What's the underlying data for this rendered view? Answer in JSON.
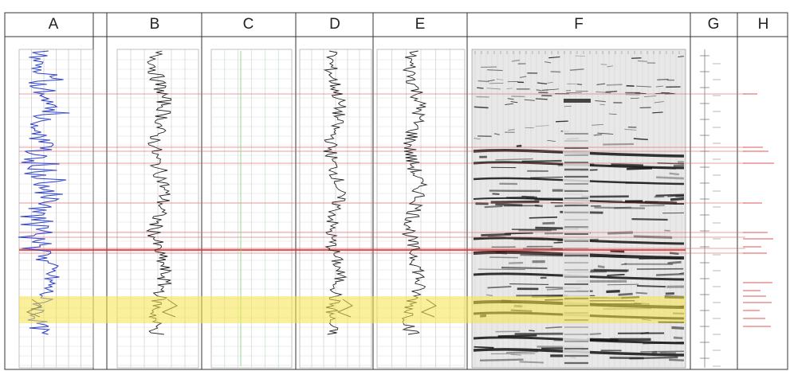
{
  "columns": [
    "A",
    "B",
    "C",
    "D",
    "E",
    "F",
    "G",
    "H"
  ],
  "highlight_color": "#f5e44a",
  "marker_color": "#e05a5a"
}
